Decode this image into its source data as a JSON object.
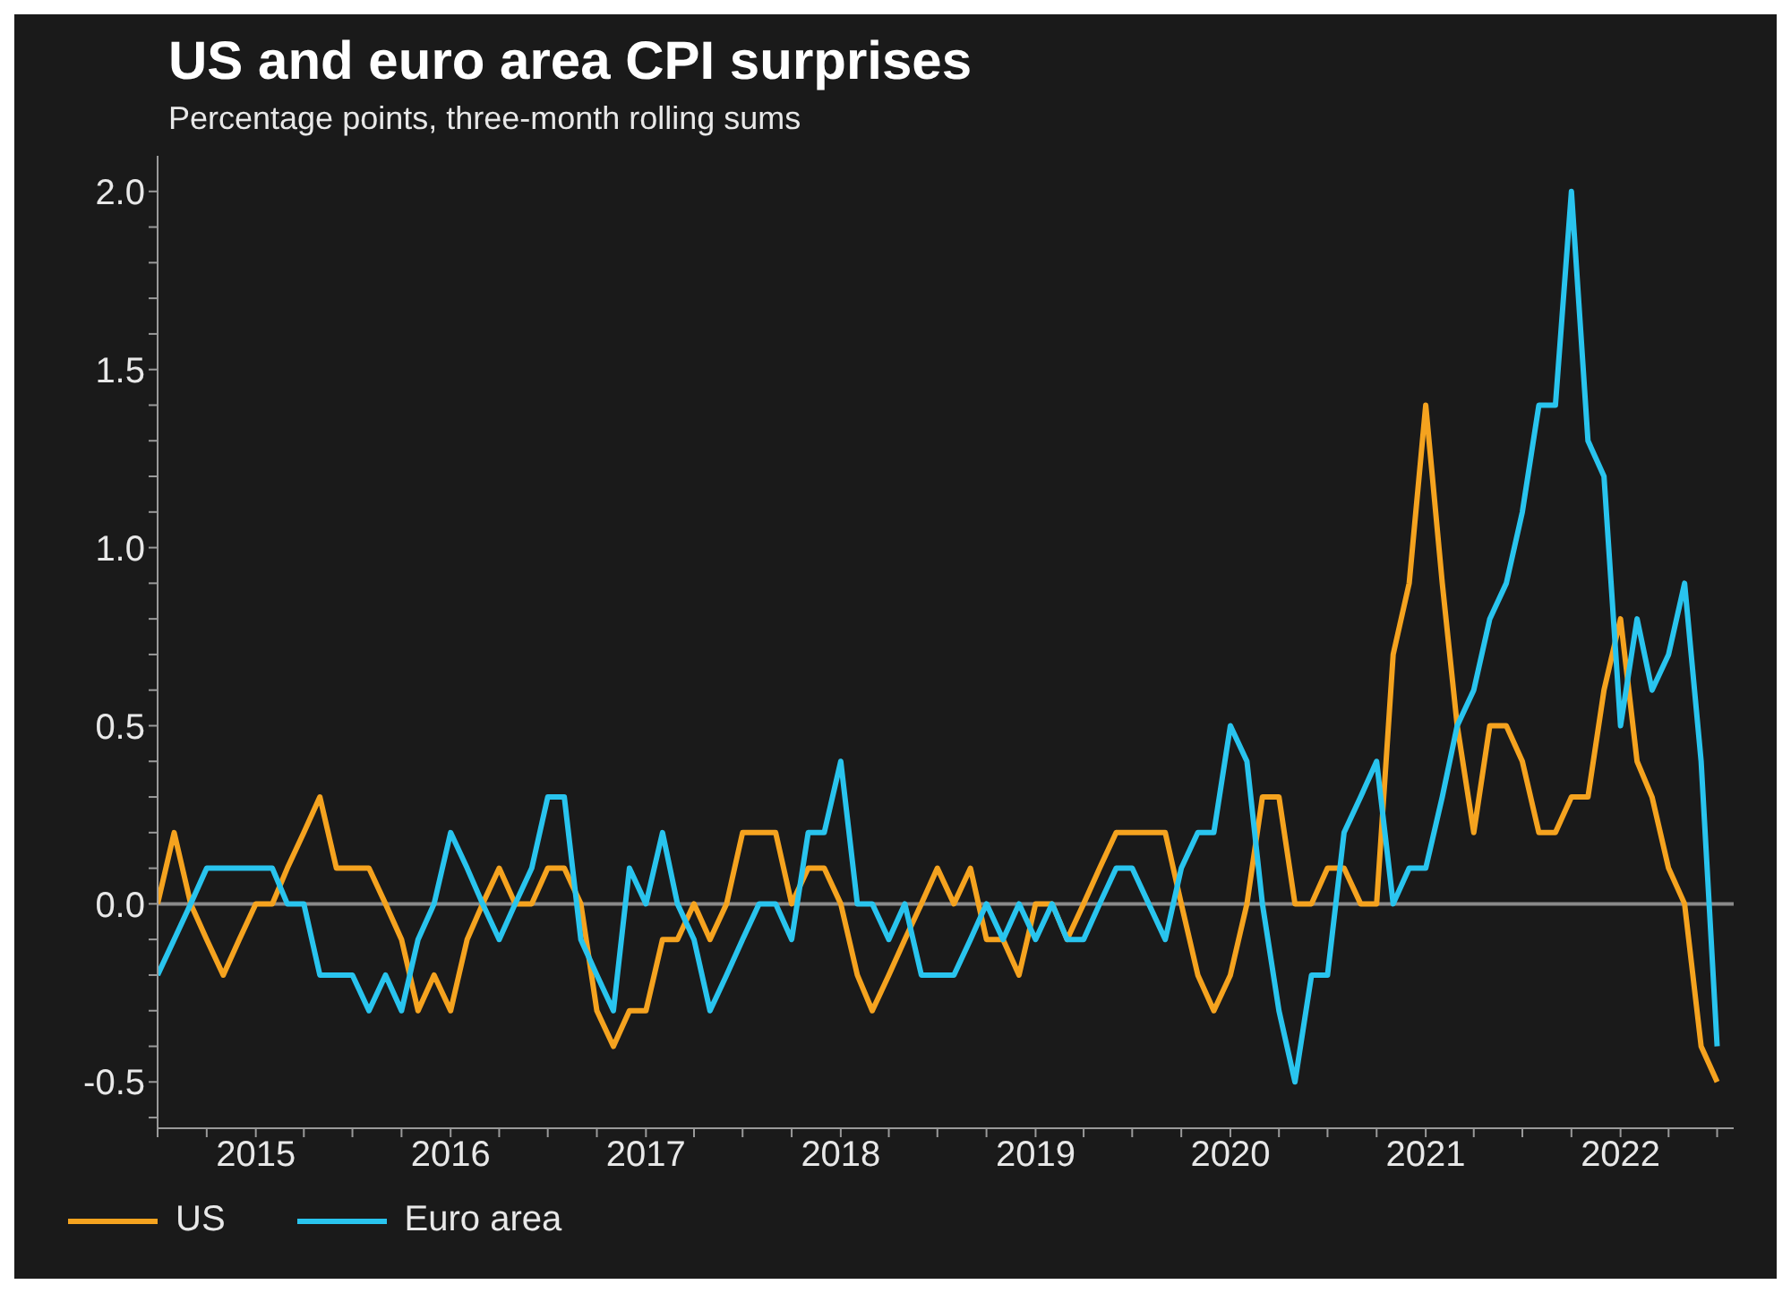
{
  "chart_data": {
    "type": "line",
    "title": "US and euro area CPI surprises",
    "subtitle": "Percentage points, three-month rolling sums",
    "x": [
      "2014-07",
      "2014-08",
      "2014-09",
      "2014-10",
      "2014-11",
      "2014-12",
      "2015-01",
      "2015-02",
      "2015-03",
      "2015-04",
      "2015-05",
      "2015-06",
      "2015-07",
      "2015-08",
      "2015-09",
      "2015-10",
      "2015-11",
      "2015-12",
      "2016-01",
      "2016-02",
      "2016-03",
      "2016-04",
      "2016-05",
      "2016-06",
      "2016-07",
      "2016-08",
      "2016-09",
      "2016-10",
      "2016-11",
      "2016-12",
      "2017-01",
      "2017-02",
      "2017-03",
      "2017-04",
      "2017-05",
      "2017-06",
      "2017-07",
      "2017-08",
      "2017-09",
      "2017-10",
      "2017-11",
      "2017-12",
      "2018-01",
      "2018-02",
      "2018-03",
      "2018-04",
      "2018-05",
      "2018-06",
      "2018-07",
      "2018-08",
      "2018-09",
      "2018-10",
      "2018-11",
      "2018-12",
      "2019-01",
      "2019-02",
      "2019-03",
      "2019-04",
      "2019-05",
      "2019-06",
      "2019-07",
      "2019-08",
      "2019-09",
      "2019-10",
      "2019-11",
      "2019-12",
      "2020-01",
      "2020-02",
      "2020-03",
      "2020-04",
      "2020-05",
      "2020-06",
      "2020-07",
      "2020-08",
      "2020-09",
      "2020-10",
      "2020-11",
      "2020-12",
      "2021-01",
      "2021-02",
      "2021-03",
      "2021-04",
      "2021-05",
      "2021-06",
      "2021-07",
      "2021-08",
      "2021-09",
      "2021-10",
      "2021-11",
      "2021-12",
      "2022-01",
      "2022-02",
      "2022-03",
      "2022-04",
      "2022-05",
      "2022-06",
      "2022-07"
    ],
    "series": [
      {
        "name": "US",
        "color": "#f5a31f",
        "values": [
          0.0,
          0.2,
          0.0,
          -0.1,
          -0.2,
          -0.1,
          0.0,
          0.0,
          0.1,
          0.2,
          0.3,
          0.1,
          0.1,
          0.1,
          0.0,
          -0.1,
          -0.3,
          -0.2,
          -0.3,
          -0.1,
          0.0,
          0.1,
          0.0,
          0.0,
          0.1,
          0.1,
          0.0,
          -0.3,
          -0.4,
          -0.3,
          -0.3,
          -0.1,
          -0.1,
          0.0,
          -0.1,
          0.0,
          0.2,
          0.2,
          0.2,
          0.0,
          0.1,
          0.1,
          0.0,
          -0.2,
          -0.3,
          -0.2,
          -0.1,
          0.0,
          0.1,
          0.0,
          0.1,
          -0.1,
          -0.1,
          -0.2,
          0.0,
          0.0,
          -0.1,
          0.0,
          0.1,
          0.2,
          0.2,
          0.2,
          0.2,
          0.0,
          -0.2,
          -0.3,
          -0.2,
          0.0,
          0.3,
          0.3,
          0.0,
          0.0,
          0.1,
          0.1,
          0.0,
          0.0,
          0.7,
          0.9,
          1.4,
          0.9,
          0.5,
          0.2,
          0.5,
          0.5,
          0.4,
          0.2,
          0.2,
          0.3,
          0.3,
          0.6,
          0.8,
          0.4,
          0.3,
          0.1,
          0.0,
          -0.4,
          -0.5
        ]
      },
      {
        "name": "Euro area",
        "color": "#29c4ee",
        "values": [
          -0.2,
          -0.1,
          0.0,
          0.1,
          0.1,
          0.1,
          0.1,
          0.1,
          0.0,
          0.0,
          -0.2,
          -0.2,
          -0.2,
          -0.3,
          -0.2,
          -0.3,
          -0.1,
          0.0,
          0.2,
          0.1,
          0.0,
          -0.1,
          0.0,
          0.1,
          0.3,
          0.3,
          -0.1,
          -0.2,
          -0.3,
          0.1,
          0.0,
          0.2,
          0.0,
          -0.1,
          -0.3,
          -0.2,
          -0.1,
          0.0,
          0.0,
          -0.1,
          0.2,
          0.2,
          0.4,
          0.0,
          0.0,
          -0.1,
          0.0,
          -0.2,
          -0.2,
          -0.2,
          -0.1,
          0.0,
          -0.1,
          0.0,
          -0.1,
          0.0,
          -0.1,
          -0.1,
          0.0,
          0.1,
          0.1,
          0.0,
          -0.1,
          0.1,
          0.2,
          0.2,
          0.5,
          0.4,
          0.0,
          -0.3,
          -0.5,
          -0.2,
          -0.2,
          0.2,
          0.3,
          0.4,
          0.0,
          0.1,
          0.1,
          0.3,
          0.5,
          0.6,
          0.8,
          0.9,
          1.1,
          1.4,
          1.4,
          2.0,
          1.3,
          1.2,
          0.5,
          0.8,
          0.6,
          0.7,
          0.9,
          0.4,
          -0.4
        ]
      }
    ],
    "xlim": [
      "2014-07",
      "2022-08"
    ],
    "xticks": [
      {
        "value": "2014-07",
        "label": null
      },
      {
        "value": "2014-10",
        "label": null
      },
      {
        "value": "2015-01",
        "label": "2015"
      },
      {
        "value": "2015-04",
        "label": null
      },
      {
        "value": "2015-07",
        "label": null
      },
      {
        "value": "2015-10",
        "label": null
      },
      {
        "value": "2016-01",
        "label": "2016"
      },
      {
        "value": "2016-04",
        "label": null
      },
      {
        "value": "2016-07",
        "label": null
      },
      {
        "value": "2016-10",
        "label": null
      },
      {
        "value": "2017-01",
        "label": "2017"
      },
      {
        "value": "2017-04",
        "label": null
      },
      {
        "value": "2017-07",
        "label": null
      },
      {
        "value": "2017-10",
        "label": null
      },
      {
        "value": "2018-01",
        "label": "2018"
      },
      {
        "value": "2018-04",
        "label": null
      },
      {
        "value": "2018-07",
        "label": null
      },
      {
        "value": "2018-10",
        "label": null
      },
      {
        "value": "2019-01",
        "label": "2019"
      },
      {
        "value": "2019-04",
        "label": null
      },
      {
        "value": "2019-07",
        "label": null
      },
      {
        "value": "2019-10",
        "label": null
      },
      {
        "value": "2020-01",
        "label": "2020"
      },
      {
        "value": "2020-04",
        "label": null
      },
      {
        "value": "2020-07",
        "label": null
      },
      {
        "value": "2020-10",
        "label": null
      },
      {
        "value": "2021-01",
        "label": "2021"
      },
      {
        "value": "2021-04",
        "label": null
      },
      {
        "value": "2021-07",
        "label": null
      },
      {
        "value": "2021-10",
        "label": null
      },
      {
        "value": "2022-01",
        "label": "2022"
      },
      {
        "value": "2022-04",
        "label": null
      },
      {
        "value": "2022-07",
        "label": null
      }
    ],
    "ylim": [
      -0.63,
      2.1
    ],
    "yticks": [
      {
        "value": -0.6,
        "label": null
      },
      -0.5,
      {
        "value": -0.4,
        "label": null
      },
      {
        "value": -0.3,
        "label": null
      },
      {
        "value": -0.2,
        "label": null
      },
      {
        "value": -0.1,
        "label": null
      },
      {
        "value": 0,
        "label": "0.0"
      },
      {
        "value": 0.1,
        "label": null
      },
      {
        "value": 0.2,
        "label": null
      },
      {
        "value": 0.3,
        "label": null
      },
      {
        "value": 0.4,
        "label": null
      },
      0.5,
      {
        "value": 0.6,
        "label": null
      },
      {
        "value": 0.7,
        "label": null
      },
      {
        "value": 0.8,
        "label": null
      },
      {
        "value": 0.9,
        "label": null
      },
      {
        "value": 1,
        "label": "1.0"
      },
      {
        "value": 1.1,
        "label": null
      },
      {
        "value": 1.2,
        "label": null
      },
      {
        "value": 1.3,
        "label": null
      },
      {
        "value": 1.4,
        "label": null
      },
      1.5,
      {
        "value": 1.6,
        "label": null
      },
      {
        "value": 1.7,
        "label": null
      },
      {
        "value": 1.8,
        "label": null
      },
      {
        "value": 1.9,
        "label": null
      },
      {
        "value": 2,
        "label": "2.0"
      }
    ],
    "ref_lines": [
      {
        "axis": "y",
        "value": 0,
        "color": "#8a8a8a"
      }
    ],
    "grid": false,
    "legend": "bottom left",
    "marker": "none",
    "line_style": "solid"
  }
}
